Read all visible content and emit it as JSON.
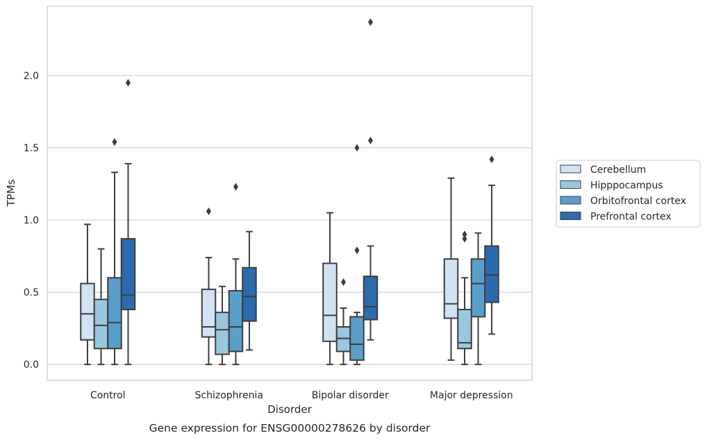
{
  "chart_data": {
    "type": "box",
    "caption": "Gene expression for ENSG00000278626 by disorder",
    "xlabel": "Disorder",
    "ylabel": "TPMs",
    "ylim": [
      -0.11,
      2.48
    ],
    "yticks": [
      "0.0",
      "0.5",
      "1.0",
      "1.5",
      "2.0"
    ],
    "grid": "horizontal",
    "legend_position": "right",
    "categories": [
      "Control",
      "Schizophrenia",
      "Bipolar disorder",
      "Major depression"
    ],
    "series": [
      {
        "name": "Cerebellum",
        "color": "#d1e2f2",
        "boxes": [
          {
            "whislo": 0.0,
            "q1": 0.17,
            "med": 0.35,
            "q3": 0.56,
            "whishi": 0.97,
            "fliers": []
          },
          {
            "whislo": 0.0,
            "q1": 0.19,
            "med": 0.26,
            "q3": 0.52,
            "whishi": 0.74,
            "fliers": [
              1.06
            ]
          },
          {
            "whislo": 0.0,
            "q1": 0.16,
            "med": 0.34,
            "q3": 0.7,
            "whishi": 1.05,
            "fliers": []
          },
          {
            "whislo": 0.03,
            "q1": 0.32,
            "med": 0.42,
            "q3": 0.73,
            "whishi": 1.29,
            "fliers": []
          }
        ]
      },
      {
        "name": "Hipppocampus",
        "color": "#9ac7e0",
        "boxes": [
          {
            "whislo": 0.0,
            "q1": 0.11,
            "med": 0.27,
            "q3": 0.45,
            "whishi": 0.8,
            "fliers": []
          },
          {
            "whislo": 0.0,
            "q1": 0.07,
            "med": 0.24,
            "q3": 0.36,
            "whishi": 0.54,
            "fliers": []
          },
          {
            "whislo": 0.0,
            "q1": 0.09,
            "med": 0.18,
            "q3": 0.26,
            "whishi": 0.39,
            "fliers": [
              0.57
            ]
          },
          {
            "whislo": 0.0,
            "q1": 0.11,
            "med": 0.15,
            "q3": 0.38,
            "whishi": 0.6,
            "fliers": [
              0.87,
              0.9
            ]
          }
        ]
      },
      {
        "name": "Orbitofrontal cortex",
        "color": "#5a9ecc",
        "boxes": [
          {
            "whislo": 0.0,
            "q1": 0.11,
            "med": 0.29,
            "q3": 0.6,
            "whishi": 1.33,
            "fliers": [
              1.54
            ]
          },
          {
            "whislo": 0.0,
            "q1": 0.09,
            "med": 0.26,
            "q3": 0.51,
            "whishi": 0.73,
            "fliers": [
              1.23
            ]
          },
          {
            "whislo": 0.0,
            "q1": 0.03,
            "med": 0.14,
            "q3": 0.33,
            "whishi": 0.36,
            "fliers": [
              0.79,
              1.5
            ]
          },
          {
            "whislo": 0.0,
            "q1": 0.33,
            "med": 0.56,
            "q3": 0.73,
            "whishi": 0.91,
            "fliers": []
          }
        ]
      },
      {
        "name": "Prefrontal cortex",
        "color": "#2c6bad",
        "boxes": [
          {
            "whislo": 0.0,
            "q1": 0.38,
            "med": 0.48,
            "q3": 0.87,
            "whishi": 1.39,
            "fliers": [
              1.95
            ]
          },
          {
            "whislo": 0.1,
            "q1": 0.3,
            "med": 0.47,
            "q3": 0.67,
            "whishi": 0.92,
            "fliers": []
          },
          {
            "whislo": 0.17,
            "q1": 0.31,
            "med": 0.4,
            "q3": 0.61,
            "whishi": 0.82,
            "fliers": [
              1.55,
              2.37
            ]
          },
          {
            "whislo": 0.21,
            "q1": 0.43,
            "med": 0.62,
            "q3": 0.82,
            "whishi": 1.24,
            "fliers": [
              1.42
            ]
          }
        ]
      }
    ]
  }
}
